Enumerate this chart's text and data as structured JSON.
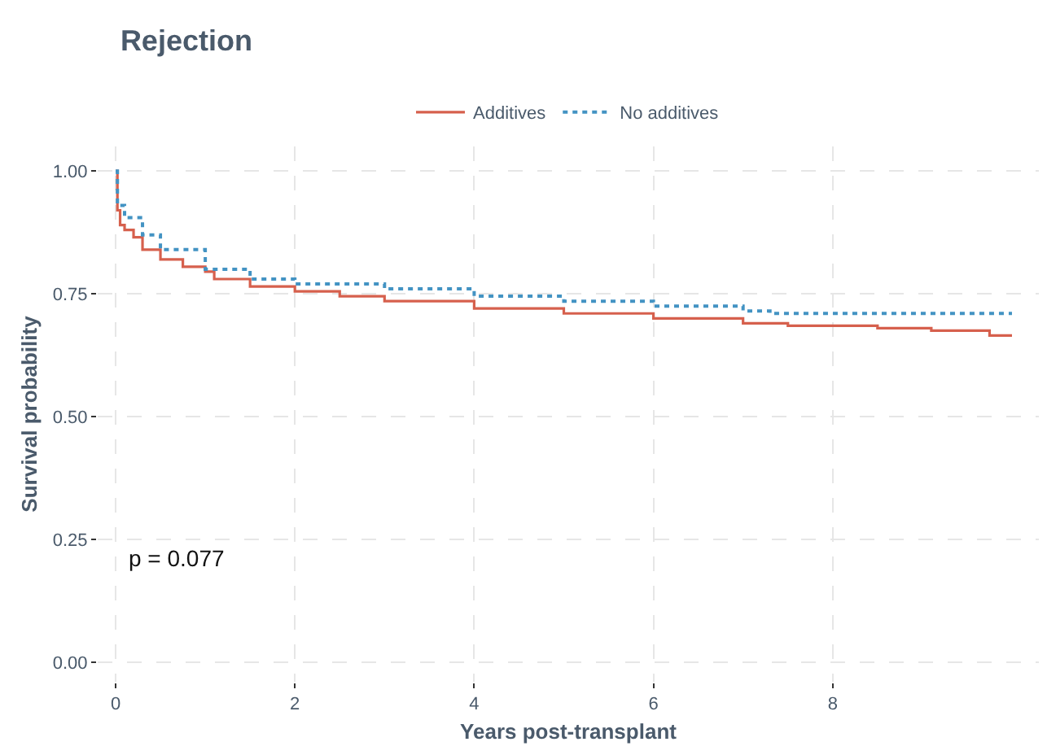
{
  "chart_data": {
    "type": "step",
    "title": "Rejection",
    "xlabel": "Years post-transplant",
    "ylabel": "Survival probability",
    "xlim": [
      -0.2,
      10.3
    ],
    "xticks": [
      0,
      2,
      4,
      6,
      8
    ],
    "ylim": [
      -0.04,
      1.05
    ],
    "yticks": [
      {
        "value": 1,
        "label": "1.00"
      },
      {
        "value": 0.75,
        "label": "0.75"
      },
      {
        "value": 0.5,
        "label": "0.50"
      },
      {
        "value": 0.25,
        "label": "0.25"
      },
      {
        "value": 0,
        "label": "0.00"
      }
    ],
    "grid": true,
    "legend": "top",
    "annotations": [
      "p = 0.077"
    ],
    "series": [
      {
        "name": "Additives",
        "color": "#d6604d",
        "line_style": "solid",
        "x": [
          0,
          0.02,
          0.05,
          0.1,
          0.2,
          0.3,
          0.5,
          0.75,
          1.0,
          1.1,
          1.5,
          2,
          2.5,
          3,
          4,
          5,
          6,
          7,
          7.5,
          8.5,
          9.1,
          9.75,
          10
        ],
        "values": [
          1.0,
          0.92,
          0.89,
          0.88,
          0.865,
          0.84,
          0.82,
          0.805,
          0.795,
          0.78,
          0.765,
          0.755,
          0.745,
          0.735,
          0.72,
          0.71,
          0.7,
          0.69,
          0.685,
          0.68,
          0.675,
          0.665,
          0.665
        ]
      },
      {
        "name": "No additives",
        "color": "#4393c3",
        "line_style": "dotted",
        "x": [
          0,
          0.02,
          0.1,
          0.3,
          0.5,
          1.0,
          1.5,
          2,
          3,
          4,
          5,
          6,
          7,
          7.3,
          8,
          10
        ],
        "values": [
          1.0,
          0.93,
          0.905,
          0.87,
          0.84,
          0.8,
          0.78,
          0.77,
          0.76,
          0.745,
          0.735,
          0.725,
          0.715,
          0.71,
          0.71,
          0.71
        ]
      }
    ]
  }
}
